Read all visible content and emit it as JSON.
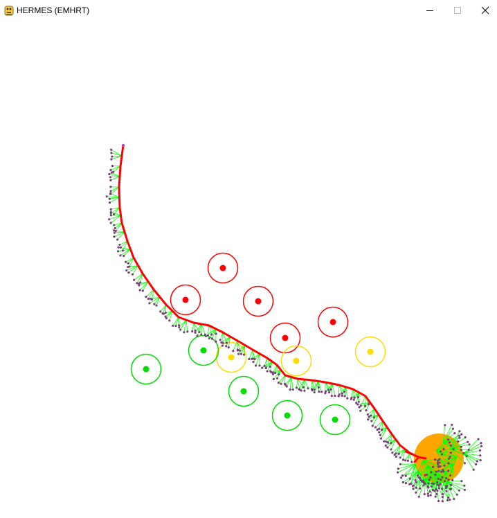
{
  "window": {
    "title": "HERMES (EMHRT)",
    "icon": "python-snake-icon",
    "controls": [
      "minimize-icon",
      "maximize-icon",
      "close-icon"
    ]
  },
  "colors": {
    "background": "#ffffff",
    "path": "#ff0000",
    "branch": "#00ff00",
    "node": "#7a3f7a",
    "node_highlight": "#c040c0",
    "goal": "#ffa500",
    "obstacle_red": "#ff0000",
    "obstacle_yellow": "#ffdd00",
    "obstacle_green": "#00dd00"
  },
  "scene": {
    "obstacle_colors": [
      "red",
      "red",
      "red",
      "red",
      "red",
      "yellow",
      "yellow",
      "yellow",
      "green",
      "green",
      "green",
      "green",
      "green"
    ],
    "goal_present": true,
    "path_present": true
  }
}
